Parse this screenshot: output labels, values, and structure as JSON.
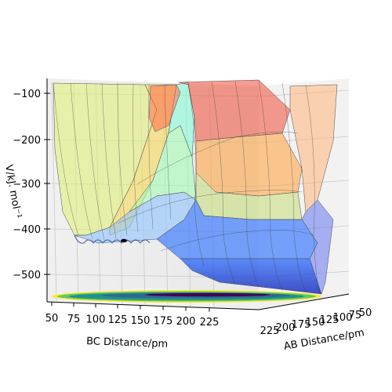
{
  "chart_data": {
    "type": "surface3d",
    "title": "",
    "x_axis": {
      "label": "BC Distance/pm",
      "ticks": [
        "50",
        "75",
        "100",
        "125",
        "150",
        "175",
        "200",
        "225"
      ],
      "range": [
        50,
        240
      ]
    },
    "y_axis": {
      "label": "AB Distance/pm",
      "ticks": [
        "225",
        "200",
        "175",
        "150",
        "125",
        "100",
        "75",
        "50"
      ],
      "range": [
        50,
        240
      ]
    },
    "z_axis": {
      "label": "V/kJ. mol⁻¹",
      "ticks": [
        "−100",
        "−200",
        "−300",
        "−400",
        "−500"
      ],
      "range": [
        -570,
        -70
      ]
    },
    "colormap": "jet",
    "projection_colormap": "viridis",
    "surface_alpha": 0.45,
    "trajectory_marker": {
      "color": "#000000",
      "label": ""
    }
  }
}
